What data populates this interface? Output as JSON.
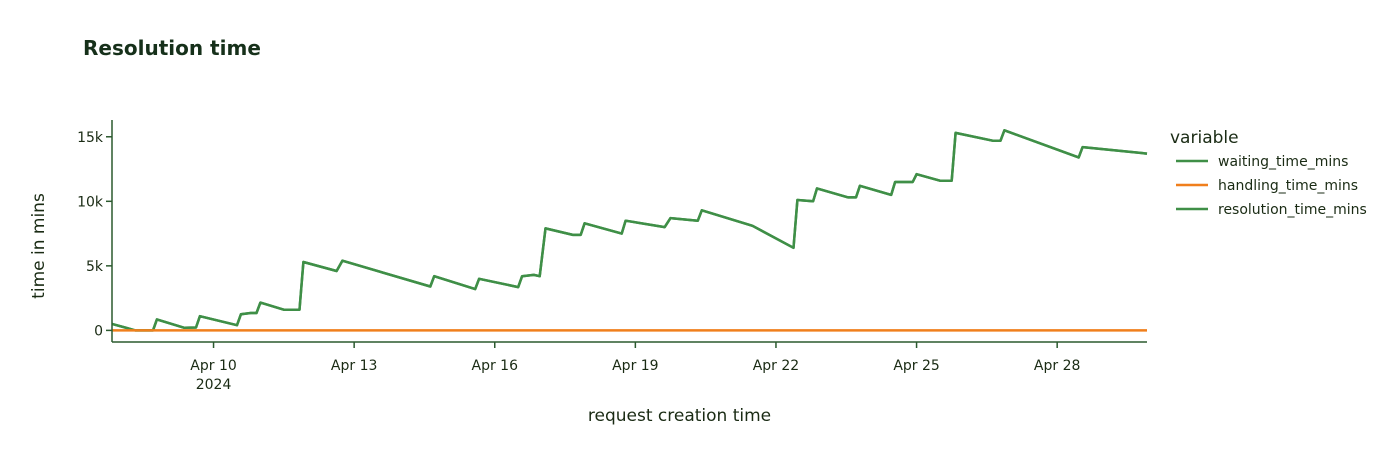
{
  "chart_data": {
    "type": "line",
    "title": "Resolution time",
    "xlabel": "request creation time",
    "ylabel": "time in mins",
    "xlim": [
      "2024-04-07T20:00",
      "2024-04-29T22:00"
    ],
    "ylim": [
      -900,
      16300
    ],
    "x_ticks": [
      {
        "x": "2024-04-10",
        "label": "Apr 10",
        "sublabel": "2024"
      },
      {
        "x": "2024-04-13",
        "label": "Apr 13"
      },
      {
        "x": "2024-04-16",
        "label": "Apr 16"
      },
      {
        "x": "2024-04-19",
        "label": "Apr 19"
      },
      {
        "x": "2024-04-22",
        "label": "Apr 22"
      },
      {
        "x": "2024-04-25",
        "label": "Apr 25"
      },
      {
        "x": "2024-04-28",
        "label": "Apr 28"
      }
    ],
    "y_ticks": [
      {
        "y": 0,
        "label": "0"
      },
      {
        "y": 5000,
        "label": "5k"
      },
      {
        "y": 10000,
        "label": "10k"
      },
      {
        "y": 15000,
        "label": "15k"
      }
    ],
    "grid": false,
    "legend": {
      "title": "variable",
      "placement": "right"
    },
    "series": [
      {
        "name": "waiting_time_mins",
        "color": "#3f8f47",
        "points": [
          [
            "2024-04-07T20:00",
            500
          ],
          [
            "2024-04-08T08:00",
            0
          ],
          [
            "2024-04-08T17:00",
            0
          ],
          [
            "2024-04-08T19:00",
            850
          ],
          [
            "2024-04-09T09:00",
            200
          ],
          [
            "2024-04-09T15:00",
            220
          ],
          [
            "2024-04-09T17:00",
            1100
          ],
          [
            "2024-04-10T12:00",
            400
          ],
          [
            "2024-04-10T14:00",
            1250
          ],
          [
            "2024-04-10T19:00",
            1350
          ],
          [
            "2024-04-10T22:00",
            1350
          ],
          [
            "2024-04-11T00:00",
            2150
          ],
          [
            "2024-04-11T12:00",
            1600
          ],
          [
            "2024-04-11T20:00",
            1600
          ],
          [
            "2024-04-11T22:00",
            5300
          ],
          [
            "2024-04-12T15:00",
            4600
          ],
          [
            "2024-04-12T18:00",
            5400
          ],
          [
            "2024-04-14T15:00",
            3400
          ],
          [
            "2024-04-14T17:00",
            4200
          ],
          [
            "2024-04-15T14:00",
            3200
          ],
          [
            "2024-04-15T16:00",
            4000
          ],
          [
            "2024-04-16T12:00",
            3350
          ],
          [
            "2024-04-16T14:00",
            4200
          ],
          [
            "2024-04-16T20:00",
            4300
          ],
          [
            "2024-04-16T23:00",
            4200
          ],
          [
            "2024-04-17T02:00",
            7900
          ],
          [
            "2024-04-17T16:00",
            7400
          ],
          [
            "2024-04-17T20:00",
            7400
          ],
          [
            "2024-04-17T22:00",
            8300
          ],
          [
            "2024-04-18T17:00",
            7500
          ],
          [
            "2024-04-18T19:00",
            8500
          ],
          [
            "2024-04-19T15:00",
            8000
          ],
          [
            "2024-04-19T18:00",
            8700
          ],
          [
            "2024-04-20T08:00",
            8500
          ],
          [
            "2024-04-20T10:00",
            9300
          ],
          [
            "2024-04-21T12:00",
            8100
          ],
          [
            "2024-04-22T09:00",
            6400
          ],
          [
            "2024-04-22T11:00",
            10100
          ],
          [
            "2024-04-22T19:00",
            10000
          ],
          [
            "2024-04-22T21:00",
            11000
          ],
          [
            "2024-04-23T13:00",
            10300
          ],
          [
            "2024-04-23T17:00",
            10300
          ],
          [
            "2024-04-23T19:00",
            11200
          ],
          [
            "2024-04-24T11:00",
            10500
          ],
          [
            "2024-04-24T13:00",
            11500
          ],
          [
            "2024-04-24T22:00",
            11500
          ],
          [
            "2024-04-25T00:00",
            12100
          ],
          [
            "2024-04-25T12:00",
            11600
          ],
          [
            "2024-04-25T18:00",
            11600
          ],
          [
            "2024-04-25T20:00",
            15300
          ],
          [
            "2024-04-26T15:00",
            14700
          ],
          [
            "2024-04-26T19:00",
            14700
          ],
          [
            "2024-04-26T21:00",
            15500
          ],
          [
            "2024-04-28T11:00",
            13400
          ],
          [
            "2024-04-28T13:00",
            14200
          ],
          [
            "2024-04-29T22:00",
            13700
          ]
        ]
      },
      {
        "name": "handling_time_mins",
        "color": "#f07f1c",
        "points": [
          [
            "2024-04-07T20:00",
            0
          ],
          [
            "2024-04-29T22:00",
            0
          ]
        ]
      },
      {
        "name": "resolution_time_mins",
        "color": "#3f8f47",
        "same_as": "waiting_time_mins"
      }
    ]
  }
}
